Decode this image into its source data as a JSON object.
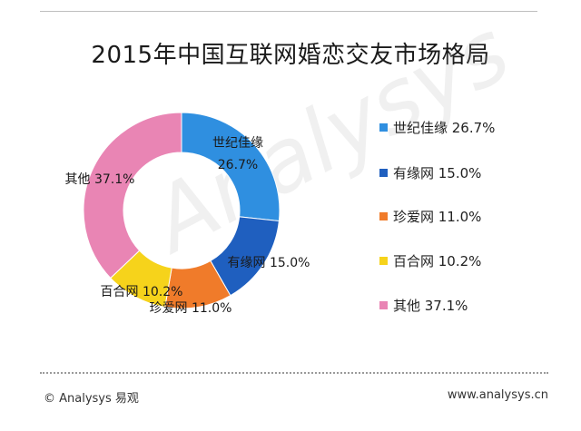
{
  "title": "2015年中国互联网婚恋交友市场格局",
  "chart_data": {
    "type": "pie",
    "title": "2015年中国互联网婚恋交友市场格局",
    "slices": [
      {
        "name": "世纪佳缘",
        "value": 26.7,
        "label": "26.7%",
        "color": "#2F8FE0"
      },
      {
        "name": "有缘网",
        "value": 15.0,
        "label": "15.0%",
        "color": "#1F5FBF"
      },
      {
        "name": "珍爱网",
        "value": 11.0,
        "label": "11.0%",
        "color": "#F07B2A"
      },
      {
        "name": "百合网",
        "value": 10.2,
        "label": "10.2%",
        "color": "#F6D31B"
      },
      {
        "name": "其他",
        "value": 37.1,
        "label": "37.1%",
        "color": "#E985B4"
      }
    ],
    "legend_position": "right",
    "donut": true
  },
  "watermark": "Analysys",
  "footer": {
    "left": "© Analysys 易观",
    "right": "www.analysys.cn"
  }
}
